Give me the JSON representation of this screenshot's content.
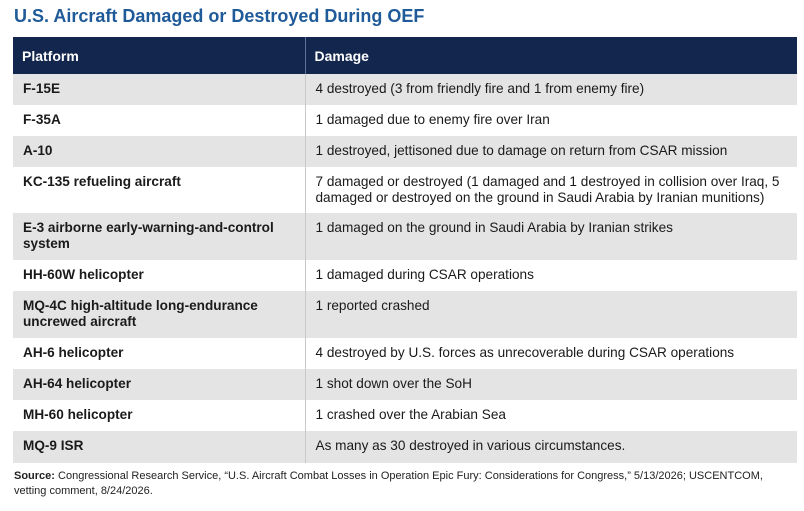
{
  "title": "U.S. Aircraft Damaged or Destroyed During OEF",
  "columns": [
    "Platform",
    "Damage"
  ],
  "rows": [
    {
      "platform": "F-15E",
      "damage": "4 destroyed (3 from friendly fire and 1 from enemy fire)"
    },
    {
      "platform": "F-35A",
      "damage": "1 damaged due to enemy fire over Iran"
    },
    {
      "platform": "A-10",
      "damage": "1 destroyed, jettisoned due to damage on return from CSAR mission"
    },
    {
      "platform": "KC-135 refueling aircraft",
      "damage": "7 damaged or destroyed (1 damaged and 1 destroyed in collision over Iraq, 5 damaged or destroyed on the ground in Saudi Arabia by Iranian munitions)"
    },
    {
      "platform": "E-3 airborne early-warning-and-control system",
      "damage": "1 damaged on the ground in Saudi Arabia by Iranian strikes"
    },
    {
      "platform": "HH-60W helicopter",
      "damage": "1 damaged during CSAR operations"
    },
    {
      "platform": "MQ-4C high-altitude long-endurance uncrewed aircraft",
      "damage": "1 reported crashed"
    },
    {
      "platform": "AH-6 helicopter",
      "damage": "4 destroyed by U.S. forces as unrecoverable during CSAR operations"
    },
    {
      "platform": "AH-64 helicopter",
      "damage": "1 shot down over the SoH"
    },
    {
      "platform": "MH-60 helicopter",
      "damage": "1 crashed over the Arabian Sea"
    },
    {
      "platform": "MQ-9 ISR",
      "damage": "As many as 30 destroyed in various circumstances."
    }
  ],
  "source": {
    "label": "Source:",
    "text": " Congressional Research Service, “U.S. Aircraft Combat Losses in Operation Epic Fury: Considerations for Congress,” 5/13/2026; USCENTCOM, vetting comment, 8/24/2026."
  }
}
